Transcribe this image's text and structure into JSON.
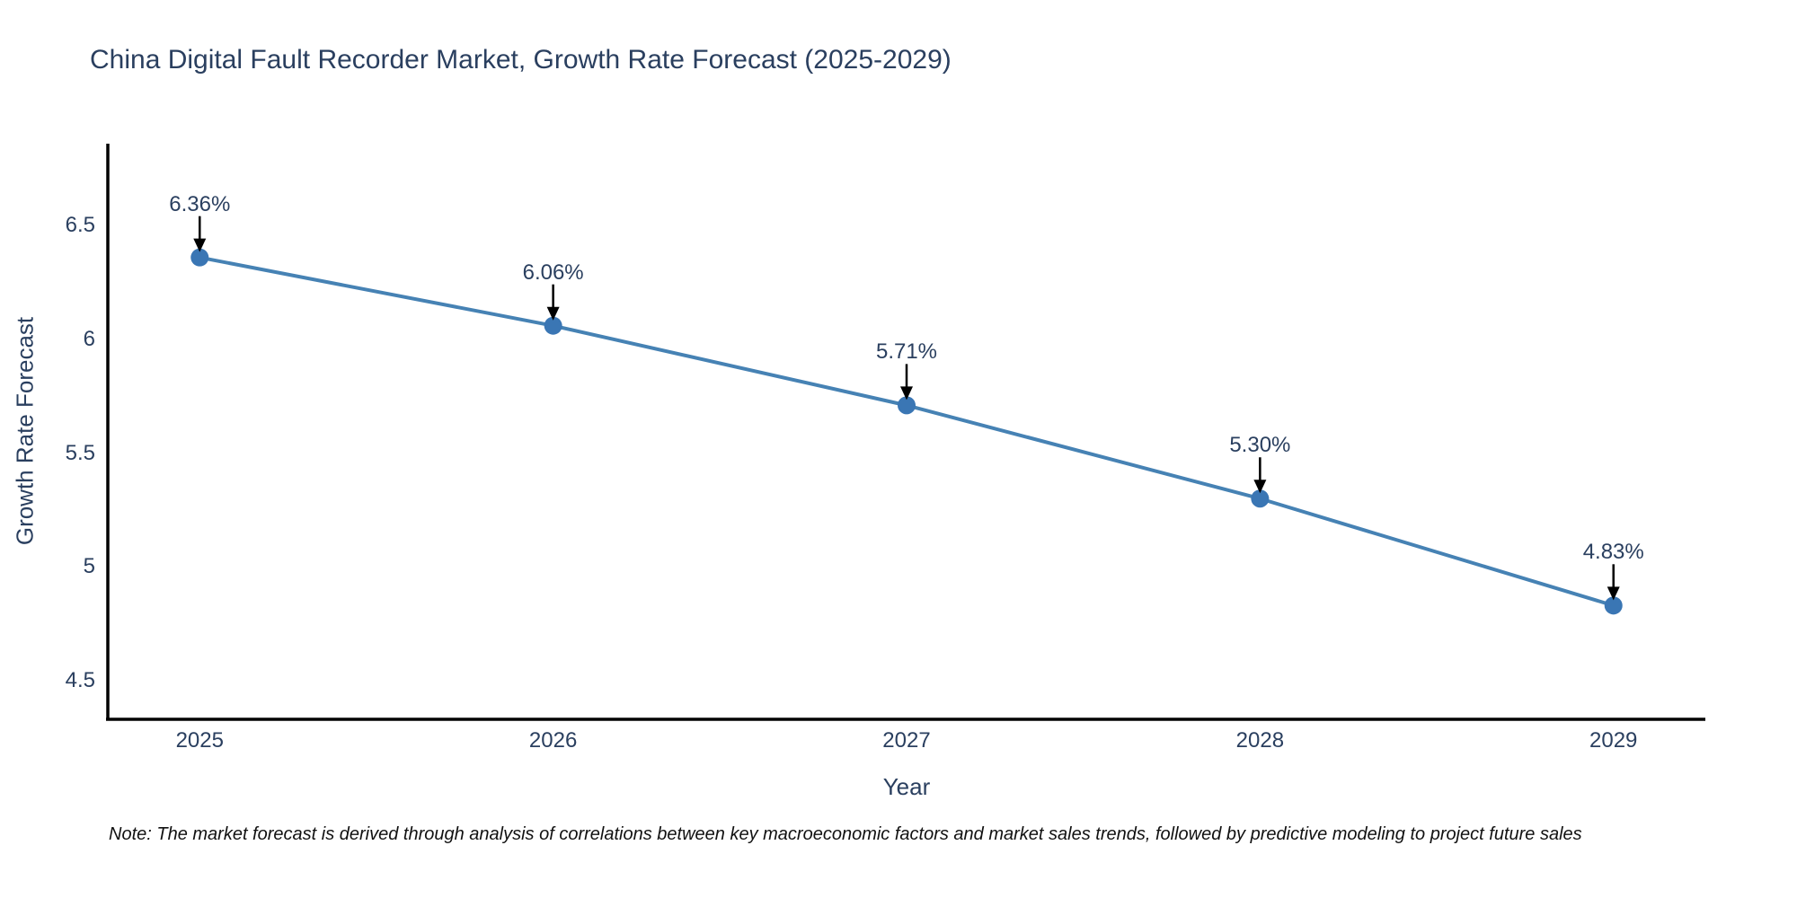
{
  "note": "Note: The market forecast is derived through analysis of correlations between key macroeconomic factors and market sales trends, followed by predictive modeling to project future sales",
  "chart_data": {
    "type": "line",
    "title": "China Digital Fault Recorder Market, Growth Rate Forecast (2025-2029)",
    "x": [
      2025,
      2026,
      2027,
      2028,
      2029
    ],
    "xtick_labels": [
      "2025",
      "2026",
      "2027",
      "2028",
      "2029"
    ],
    "values": [
      6.36,
      6.06,
      5.71,
      5.3,
      4.83
    ],
    "point_labels": [
      "6.36%",
      "6.06%",
      "5.71%",
      "5.30%",
      "4.83%"
    ],
    "xlabel": "Year",
    "ylabel": "Growth Rate Forecast",
    "ytick_values": [
      6.5,
      6.0,
      5.5,
      5.0,
      4.5
    ],
    "ytick_labels": [
      "6.5",
      "6",
      "5.5",
      "5",
      "4.5"
    ],
    "xlim": [
      2024.74,
      2029.26
    ],
    "ylim": [
      4.33,
      6.86
    ],
    "grid": false,
    "legend": false,
    "line_color": "#4682b4",
    "marker_color": "#3a76b4",
    "axis_color": "#000000",
    "annotation_arrow_color": "#000000",
    "text_color": "#2a3f5f"
  }
}
